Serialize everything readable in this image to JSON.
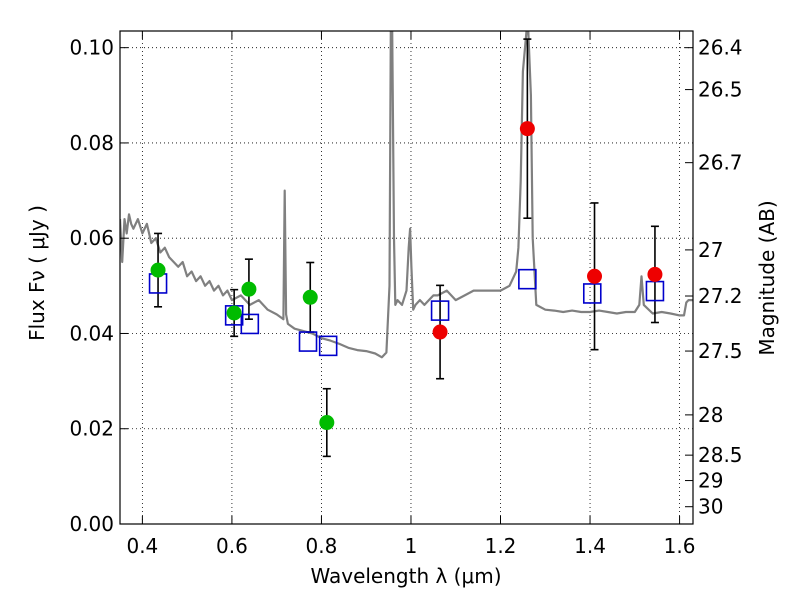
{
  "chart_data": {
    "type": "scatter",
    "xlabel": "Wavelength  λ (μm)",
    "ylabel_left": "Flux  Fν  ( μJy )",
    "ylabel_right": "Magnitude (AB)",
    "xlim": [
      0.35,
      1.63
    ],
    "ylim": [
      0.0,
      0.1035
    ],
    "x_ticks": [
      0.4,
      0.6,
      0.8,
      1.0,
      1.2,
      1.4,
      1.6
    ],
    "x_tick_labels": [
      "0.4",
      "0.6",
      "0.8",
      "1",
      "1.2",
      "1.4",
      "1.6"
    ],
    "y_ticks": [
      0.0,
      0.02,
      0.04,
      0.06,
      0.08,
      0.1
    ],
    "y_tick_labels": [
      "0.00",
      "0.02",
      "0.04",
      "0.06",
      "0.08",
      "0.10"
    ],
    "right_ticks": [
      26.4,
      26.5,
      26.7,
      27,
      27.2,
      27.5,
      28,
      28.5,
      29,
      30
    ],
    "right_tick_labels": [
      "26.4",
      "26.5",
      "26.7",
      "27",
      "27.2",
      "27.5",
      "28",
      "28.5",
      "29",
      "30"
    ],
    "grid": true,
    "colors": {
      "model": "#808080",
      "green": "#00bb00",
      "red": "#ee0000",
      "box": "#0000cc",
      "errorbar": "#000000"
    },
    "series": [
      {
        "type": "line",
        "color": "#808080",
        "x": [
          0.35,
          0.355,
          0.36,
          0.365,
          0.37,
          0.375,
          0.38,
          0.39,
          0.4,
          0.41,
          0.42,
          0.43,
          0.44,
          0.45,
          0.46,
          0.47,
          0.48,
          0.49,
          0.5,
          0.51,
          0.52,
          0.53,
          0.54,
          0.55,
          0.56,
          0.57,
          0.58,
          0.59,
          0.6,
          0.62,
          0.64,
          0.66,
          0.68,
          0.7,
          0.715,
          0.718,
          0.721,
          0.725,
          0.74,
          0.76,
          0.78,
          0.8,
          0.82,
          0.84,
          0.86,
          0.88,
          0.9,
          0.92,
          0.935,
          0.945,
          0.952,
          0.955,
          0.958,
          0.962,
          0.965,
          0.97,
          0.98,
          0.99,
          0.995,
          0.998,
          1.001,
          1.005,
          1.01,
          1.02,
          1.03,
          1.04,
          1.05,
          1.06,
          1.08,
          1.1,
          1.12,
          1.14,
          1.16,
          1.18,
          1.2,
          1.22,
          1.235,
          1.24,
          1.245,
          1.25,
          1.258,
          1.262,
          1.268,
          1.272,
          1.28,
          1.3,
          1.32,
          1.34,
          1.36,
          1.38,
          1.4,
          1.42,
          1.44,
          1.46,
          1.48,
          1.5,
          1.51,
          1.515,
          1.52,
          1.54,
          1.56,
          1.58,
          1.6,
          1.61,
          1.615,
          1.62,
          1.63
        ],
        "y": [
          0.064,
          0.055,
          0.064,
          0.061,
          0.065,
          0.063,
          0.062,
          0.064,
          0.061,
          0.063,
          0.059,
          0.06,
          0.057,
          0.058,
          0.056,
          0.055,
          0.054,
          0.055,
          0.052,
          0.053,
          0.051,
          0.052,
          0.05,
          0.051,
          0.049,
          0.05,
          0.048,
          0.049,
          0.047,
          0.048,
          0.046,
          0.047,
          0.045,
          0.044,
          0.043,
          0.07,
          0.044,
          0.042,
          0.041,
          0.0405,
          0.04,
          0.039,
          0.0385,
          0.0378,
          0.037,
          0.0365,
          0.0363,
          0.0358,
          0.035,
          0.036,
          0.05,
          0.1035,
          0.1035,
          0.06,
          0.046,
          0.047,
          0.046,
          0.049,
          0.058,
          0.062,
          0.054,
          0.045,
          0.046,
          0.047,
          0.046,
          0.047,
          0.048,
          0.048,
          0.049,
          0.047,
          0.048,
          0.049,
          0.049,
          0.049,
          0.049,
          0.05,
          0.053,
          0.058,
          0.072,
          0.095,
          0.1035,
          0.1035,
          0.09,
          0.06,
          0.046,
          0.045,
          0.0448,
          0.0445,
          0.0448,
          0.0445,
          0.0445,
          0.0448,
          0.0445,
          0.0442,
          0.0445,
          0.0445,
          0.046,
          0.052,
          0.046,
          0.0442,
          0.0445,
          0.0442,
          0.0438,
          0.0438,
          0.0465,
          0.047,
          0.047
        ]
      },
      {
        "type": "scatter",
        "marker": "circle",
        "color": "#00bb00",
        "x": [
          0.435,
          0.605,
          0.638,
          0.775,
          0.812
        ],
        "y": [
          0.0533,
          0.0443,
          0.0493,
          0.0476,
          0.0213
        ],
        "yerr": [
          0.0077,
          0.0049,
          0.0063,
          0.0073,
          0.0071
        ]
      },
      {
        "type": "scatter",
        "marker": "circle",
        "color": "#ee0000",
        "x": [
          1.065,
          1.26,
          1.41,
          1.545
        ],
        "y": [
          0.0403,
          0.083,
          0.052,
          0.0524
        ],
        "yerr": [
          0.0098,
          0.0188,
          0.0154,
          0.0101
        ]
      },
      {
        "type": "scatter",
        "marker": "open-square",
        "color": "#0000cc",
        "x": [
          0.435,
          0.605,
          0.64,
          0.77,
          0.815,
          1.065,
          1.26,
          1.405,
          1.545
        ],
        "y": [
          0.0505,
          0.0438,
          0.042,
          0.0383,
          0.0374,
          0.0448,
          0.0514,
          0.0484,
          0.0489
        ]
      }
    ]
  }
}
